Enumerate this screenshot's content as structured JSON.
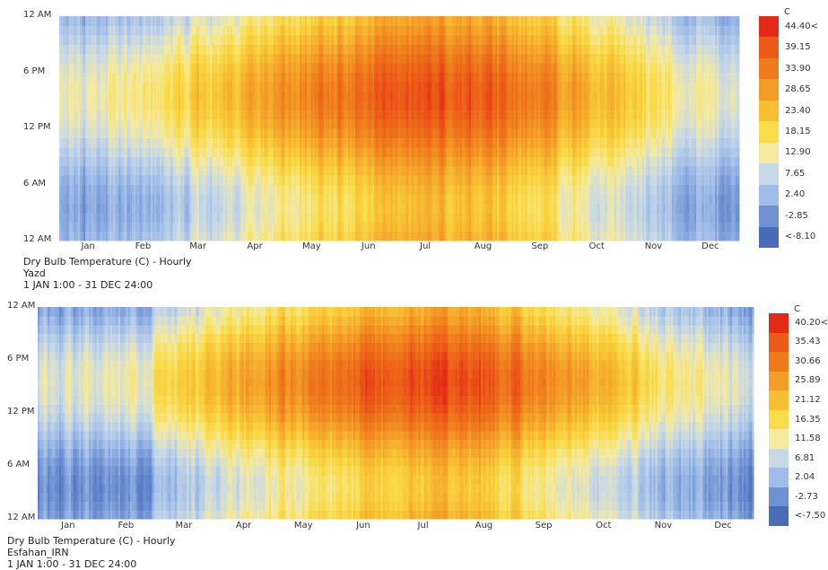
{
  "chart_data": [
    {
      "type": "heatmap",
      "title": "Dry Bulb Temperature (C) - Hourly",
      "location": "Yazd",
      "period": "1 JAN 1:00 - 31 DEC 24:00",
      "x_tick_labels": [
        "Jan",
        "Feb",
        "Mar",
        "Apr",
        "May",
        "Jun",
        "Jul",
        "Aug",
        "Sep",
        "Oct",
        "Nov",
        "Dec"
      ],
      "y_tick_labels": [
        "12 AM",
        "6 PM",
        "12 PM",
        "6 AM",
        "12 AM"
      ],
      "legend_unit": "C",
      "legend_labels": [
        "44.40<",
        "39.15",
        "33.90",
        "28.65",
        "23.40",
        "18.15",
        "12.90",
        "7.65",
        "2.40",
        "-2.85",
        "<-8.10"
      ],
      "legend_colors": [
        "#e22a16",
        "#ec5a18",
        "#ee7a1c",
        "#f39c27",
        "#f7be33",
        "#f9dc4a",
        "#f4eaa0",
        "#c8d9e6",
        "#9fbde8",
        "#6f91d3",
        "#4a6cb8"
      ],
      "z_min": -8.1,
      "z_max": 44.4,
      "daily_mean_by_month": [
        5,
        8,
        13,
        19,
        24.5,
        30,
        32,
        30,
        25,
        18.5,
        11,
        6
      ],
      "daily_amplitude_by_month": [
        6,
        7,
        7.5,
        8,
        8.5,
        8.5,
        8,
        8,
        8,
        7.5,
        6.5,
        6
      ],
      "warmest_hour": 15,
      "coldest_hour": 5
    },
    {
      "type": "heatmap",
      "title": "Dry Bulb Temperature (C) - Hourly",
      "location": "Esfahan_IRN",
      "period": "1 JAN 1:00 - 31 DEC 24:00",
      "x_tick_labels": [
        "Jan",
        "Feb",
        "Mar",
        "Apr",
        "May",
        "Jun",
        "Jul",
        "Aug",
        "Sep",
        "Oct",
        "Nov",
        "Dec"
      ],
      "y_tick_labels": [
        "12 AM",
        "6 PM",
        "12 PM",
        "6 AM",
        "12 AM"
      ],
      "legend_unit": "C",
      "legend_labels": [
        "40.20<",
        "35.43",
        "30.66",
        "25.89",
        "21.12",
        "16.35",
        "11.58",
        "6.81",
        "2.04",
        "-2.73",
        "<-7.50"
      ],
      "legend_colors": [
        "#e22a16",
        "#ec5a18",
        "#ee7a1c",
        "#f39c27",
        "#f7be33",
        "#f9dc4a",
        "#f4eaa0",
        "#c8d9e6",
        "#9fbde8",
        "#6f91d3",
        "#4a6cb8"
      ],
      "z_min": -7.5,
      "z_max": 40.2,
      "daily_mean_by_month": [
        2,
        5,
        10.5,
        16,
        21,
        26.5,
        29,
        27,
        22,
        15.5,
        8,
        3.5
      ],
      "daily_amplitude_by_month": [
        6,
        7,
        7.5,
        8,
        8.5,
        9,
        8.5,
        8.5,
        8.5,
        8,
        6.5,
        6
      ],
      "warmest_hour": 15,
      "coldest_hour": 5
    }
  ]
}
